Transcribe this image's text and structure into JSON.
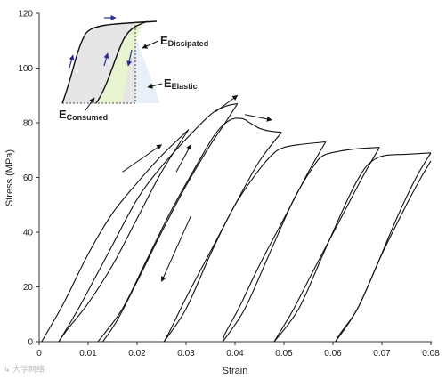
{
  "chart_data": {
    "type": "line",
    "title": "",
    "xlabel": "Strain",
    "ylabel": "Stress (MPa)",
    "xlim": [
      0,
      0.08
    ],
    "ylim": [
      0,
      120
    ],
    "x_ticks": [
      0,
      0.01,
      0.02,
      0.03,
      0.04,
      0.05,
      0.06,
      0.07,
      0.08
    ],
    "y_ticks": [
      0,
      20,
      40,
      60,
      80,
      100,
      120
    ],
    "grid": false,
    "series": [
      {
        "cycles": [
          {
            "load": [
              [
                0.0005,
                0
              ],
              [
                0.005,
                14
              ],
              [
                0.01,
                32
              ],
              [
                0.015,
                47
              ],
              [
                0.02,
                58
              ],
              [
                0.025,
                68
              ],
              [
                0.0305,
                77.5
              ]
            ],
            "unload": [
              [
                0.0305,
                77.5
              ],
              [
                0.025,
                62
              ],
              [
                0.02,
                45
              ],
              [
                0.015,
                28
              ],
              [
                0.01,
                14
              ],
              [
                0.006,
                5
              ],
              [
                0.004,
                0
              ]
            ]
          },
          {
            "load": [
              [
                0.004,
                0
              ],
              [
                0.008,
                12
              ],
              [
                0.014,
                32
              ],
              [
                0.02,
                52
              ],
              [
                0.025,
                64
              ],
              [
                0.03,
                74
              ],
              [
                0.035,
                83
              ],
              [
                0.038,
                86
              ],
              [
                0.0405,
                87
              ]
            ],
            "unload": [
              [
                0.0405,
                87
              ],
              [
                0.038,
                80
              ],
              [
                0.035,
                72
              ],
              [
                0.03,
                57
              ],
              [
                0.025,
                40
              ],
              [
                0.02,
                22
              ],
              [
                0.016,
                8
              ],
              [
                0.013,
                0
              ]
            ]
          },
          {
            "load": [
              [
                0.012,
                0
              ],
              [
                0.017,
                12
              ],
              [
                0.022,
                30
              ],
              [
                0.027,
                48
              ],
              [
                0.032,
                64
              ],
              [
                0.036,
                76
              ],
              [
                0.039,
                81
              ],
              [
                0.0415,
                81.5
              ],
              [
                0.043,
                80
              ],
              [
                0.045,
                78
              ],
              [
                0.047,
                77
              ],
              [
                0.0495,
                76.5
              ]
            ],
            "unload": [
              [
                0.0495,
                76.5
              ],
              [
                0.045,
                66
              ],
              [
                0.04,
                50
              ],
              [
                0.035,
                33
              ],
              [
                0.03,
                16
              ],
              [
                0.027,
                5
              ],
              [
                0.0255,
                0
              ]
            ]
          },
          {
            "load": [
              [
                0.0255,
                0
              ],
              [
                0.03,
                12
              ],
              [
                0.035,
                32
              ],
              [
                0.04,
                50
              ],
              [
                0.045,
                63
              ],
              [
                0.048,
                69
              ],
              [
                0.05,
                71
              ],
              [
                0.053,
                72
              ],
              [
                0.0585,
                73
              ]
            ],
            "unload": [
              [
                0.0585,
                73
              ],
              [
                0.055,
                62
              ],
              [
                0.05,
                45
              ],
              [
                0.045,
                28
              ],
              [
                0.041,
                13
              ],
              [
                0.038,
                3
              ],
              [
                0.0375,
                0
              ]
            ]
          },
          {
            "load": [
              [
                0.0375,
                0
              ],
              [
                0.042,
                12
              ],
              [
                0.047,
                32
              ],
              [
                0.052,
                52
              ],
              [
                0.056,
                64
              ],
              [
                0.058,
                68
              ],
              [
                0.061,
                69.5
              ],
              [
                0.065,
                70.5
              ],
              [
                0.0695,
                71
              ]
            ],
            "unload": [
              [
                0.0695,
                71
              ],
              [
                0.066,
                60
              ],
              [
                0.061,
                43
              ],
              [
                0.056,
                26
              ],
              [
                0.052,
                12
              ],
              [
                0.049,
                3
              ],
              [
                0.048,
                0
              ]
            ]
          },
          {
            "load": [
              [
                0.048,
                0
              ],
              [
                0.053,
                12
              ],
              [
                0.058,
                32
              ],
              [
                0.063,
                52
              ],
              [
                0.066,
                62
              ],
              [
                0.068,
                66
              ],
              [
                0.0705,
                68
              ],
              [
                0.075,
                68.5
              ],
              [
                0.08,
                69
              ]
            ],
            "unload": [
              [
                0.08,
                69
              ],
              [
                0.077,
                60
              ],
              [
                0.073,
                45
              ],
              [
                0.069,
                28
              ],
              [
                0.065,
                12
              ],
              [
                0.0615,
                3
              ],
              [
                0.0605,
                0
              ]
            ]
          },
          {
            "load": [
              [
                0.0605,
                0
              ],
              [
                0.065,
                12
              ],
              [
                0.07,
                32
              ],
              [
                0.075,
                50
              ],
              [
                0.078,
                60
              ],
              [
                0.08,
                66
              ]
            ],
            "unload": []
          }
        ]
      }
    ],
    "arrows": [
      {
        "from": [
          0.017,
          62
        ],
        "to": [
          0.025,
          72
        ]
      },
      {
        "from": [
          0.036,
          84
        ],
        "to": [
          0.0405,
          90
        ]
      },
      {
        "from": [
          0.042,
          83
        ],
        "to": [
          0.0475,
          81
        ]
      },
      {
        "from": [
          0.028,
          62
        ],
        "to": [
          0.031,
          72
        ]
      },
      {
        "from": [
          0.031,
          46
        ],
        "to": [
          0.025,
          22
        ]
      }
    ]
  },
  "inset": {
    "label_consumed_main": "E",
    "label_consumed_sub": "Consumed",
    "label_dissipated_main": "E",
    "label_dissipated_sub": "Dissipated",
    "label_elastic_main": "E",
    "label_elastic_sub": "Elastic",
    "colors": {
      "consumed_fill": "#e6e6e6",
      "dissipated_fill": "#e8f4d0",
      "elastic_fill": "#e4eef8",
      "arrow_color": "#2a2aa0"
    }
  },
  "watermark": "↳ 大学网络"
}
